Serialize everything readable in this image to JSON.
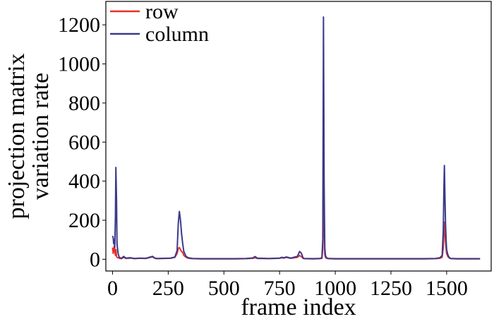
{
  "chart_data": {
    "type": "line",
    "title": "",
    "xlabel": "frame index",
    "ylabel": [
      "projection matrix",
      "variation rate"
    ],
    "xlim": [
      -30,
      1700
    ],
    "ylim": [
      -60,
      1320
    ],
    "xticks": [
      0,
      250,
      500,
      750,
      1000,
      1250,
      1500
    ],
    "xtick_labels": [
      "0",
      "250",
      "500",
      "750",
      "1000",
      "1250",
      "1500"
    ],
    "yticks": [
      0,
      200,
      400,
      600,
      800,
      1000,
      1200
    ],
    "ytick_labels": [
      "0",
      "200",
      "400",
      "600",
      "800",
      "1000",
      "1200"
    ],
    "grid": false,
    "legend": "upper-left",
    "series": [
      {
        "name": "row",
        "color": "#e8302a",
        "x": [
          0,
          3,
          5,
          8,
          10,
          13,
          15,
          18,
          20,
          25,
          30,
          40,
          50,
          60,
          80,
          100,
          120,
          150,
          170,
          180,
          190,
          200,
          230,
          260,
          280,
          290,
          295,
          300,
          305,
          310,
          315,
          320,
          330,
          340,
          360,
          400,
          450,
          500,
          550,
          600,
          630,
          640,
          650,
          700,
          750,
          760,
          770,
          780,
          790,
          800,
          830,
          840,
          845,
          850,
          855,
          860,
          900,
          930,
          940,
          944,
          947,
          950,
          953,
          956,
          960,
          970,
          1000,
          1050,
          1100,
          1150,
          1200,
          1250,
          1300,
          1350,
          1400,
          1450,
          1470,
          1480,
          1485,
          1488,
          1490,
          1492,
          1495,
          1498,
          1500,
          1505,
          1510,
          1515,
          1520,
          1550,
          1600,
          1650
        ],
        "values": [
          60,
          30,
          40,
          70,
          45,
          20,
          50,
          15,
          10,
          8,
          5,
          3,
          10,
          4,
          6,
          3,
          5,
          4,
          10,
          12,
          5,
          3,
          4,
          5,
          10,
          30,
          55,
          60,
          50,
          40,
          35,
          20,
          10,
          5,
          3,
          2,
          2,
          2,
          2,
          3,
          5,
          8,
          4,
          3,
          5,
          8,
          6,
          10,
          7,
          5,
          10,
          20,
          15,
          12,
          5,
          3,
          2,
          3,
          5,
          50,
          530,
          150,
          25,
          10,
          5,
          3,
          2,
          2,
          2,
          2,
          2,
          2,
          2,
          2,
          2,
          3,
          5,
          10,
          60,
          140,
          190,
          150,
          90,
          50,
          30,
          15,
          8,
          5,
          3,
          2,
          2,
          2
        ]
      },
      {
        "name": "column",
        "color": "#3a3a8c",
        "x": [
          0,
          3,
          5,
          8,
          10,
          13,
          15,
          18,
          20,
          25,
          30,
          40,
          50,
          60,
          80,
          100,
          120,
          150,
          170,
          180,
          190,
          200,
          230,
          260,
          280,
          290,
          295,
          300,
          305,
          310,
          315,
          320,
          330,
          340,
          360,
          400,
          450,
          500,
          550,
          600,
          630,
          640,
          650,
          700,
          750,
          760,
          770,
          780,
          790,
          800,
          830,
          840,
          845,
          850,
          855,
          860,
          900,
          930,
          940,
          944,
          947,
          950,
          953,
          956,
          960,
          970,
          1000,
          1050,
          1100,
          1150,
          1200,
          1250,
          1300,
          1350,
          1400,
          1450,
          1470,
          1480,
          1485,
          1488,
          1490,
          1492,
          1495,
          1498,
          1500,
          1505,
          1510,
          1515,
          1520,
          1550,
          1600,
          1650
        ],
        "values": [
          120,
          110,
          80,
          100,
          60,
          220,
          470,
          300,
          80,
          30,
          10,
          5,
          15,
          6,
          8,
          4,
          6,
          5,
          12,
          15,
          6,
          4,
          5,
          6,
          12,
          45,
          180,
          245,
          200,
          130,
          80,
          40,
          15,
          8,
          4,
          3,
          3,
          3,
          3,
          4,
          7,
          14,
          6,
          4,
          6,
          10,
          8,
          12,
          9,
          6,
          15,
          40,
          35,
          25,
          8,
          4,
          3,
          4,
          8,
          100,
          1240,
          400,
          60,
          20,
          8,
          4,
          3,
          3,
          3,
          3,
          3,
          3,
          3,
          3,
          3,
          4,
          8,
          20,
          150,
          380,
          480,
          350,
          180,
          90,
          50,
          25,
          12,
          6,
          4,
          3,
          3,
          3
        ]
      }
    ]
  }
}
